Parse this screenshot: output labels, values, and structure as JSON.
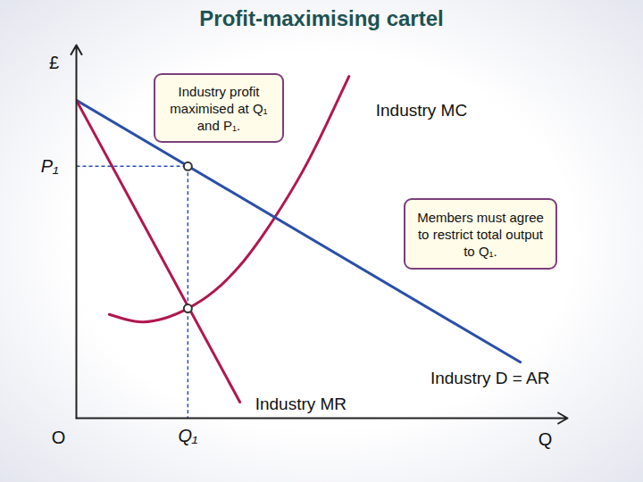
{
  "chart_data": {
    "type": "line",
    "title": "Profit-maximising cartel",
    "xlabel": "Q",
    "ylabel": "£",
    "origin_label": "O",
    "xlim": [
      0,
      100
    ],
    "ylim": [
      0,
      100
    ],
    "xticks": [
      {
        "value": 22.7,
        "label": "Q₁"
      }
    ],
    "yticks": [
      {
        "value": 67.5,
        "label": "P₁"
      }
    ],
    "series": [
      {
        "name": "Industry MC",
        "color": "#b0174f",
        "x": [
          6.7,
          10,
          13.6,
          18,
          22.7,
          28,
          34,
          40,
          46,
          51,
          55.5
        ],
        "values": [
          27.8,
          26.5,
          25.8,
          26.8,
          29.4,
          34,
          42,
          53,
          66,
          79,
          91.6
        ]
      },
      {
        "name": "Industry D = AR",
        "color": "#2a4fa8",
        "x": [
          0,
          90.4
        ],
        "values": [
          85.2,
          15
        ]
      },
      {
        "name": "Industry MR",
        "color": "#b0174f",
        "x": [
          0,
          33.3
        ],
        "values": [
          85.2,
          4.3
        ]
      }
    ],
    "markers": {
      "x": [
        22.7,
        22.7
      ],
      "values": [
        67.5,
        29.4
      ]
    },
    "annotations": [
      "Industry profit maximised at Q₁ and P₁.",
      "Members must agree to restrict total output to Q₁."
    ]
  }
}
